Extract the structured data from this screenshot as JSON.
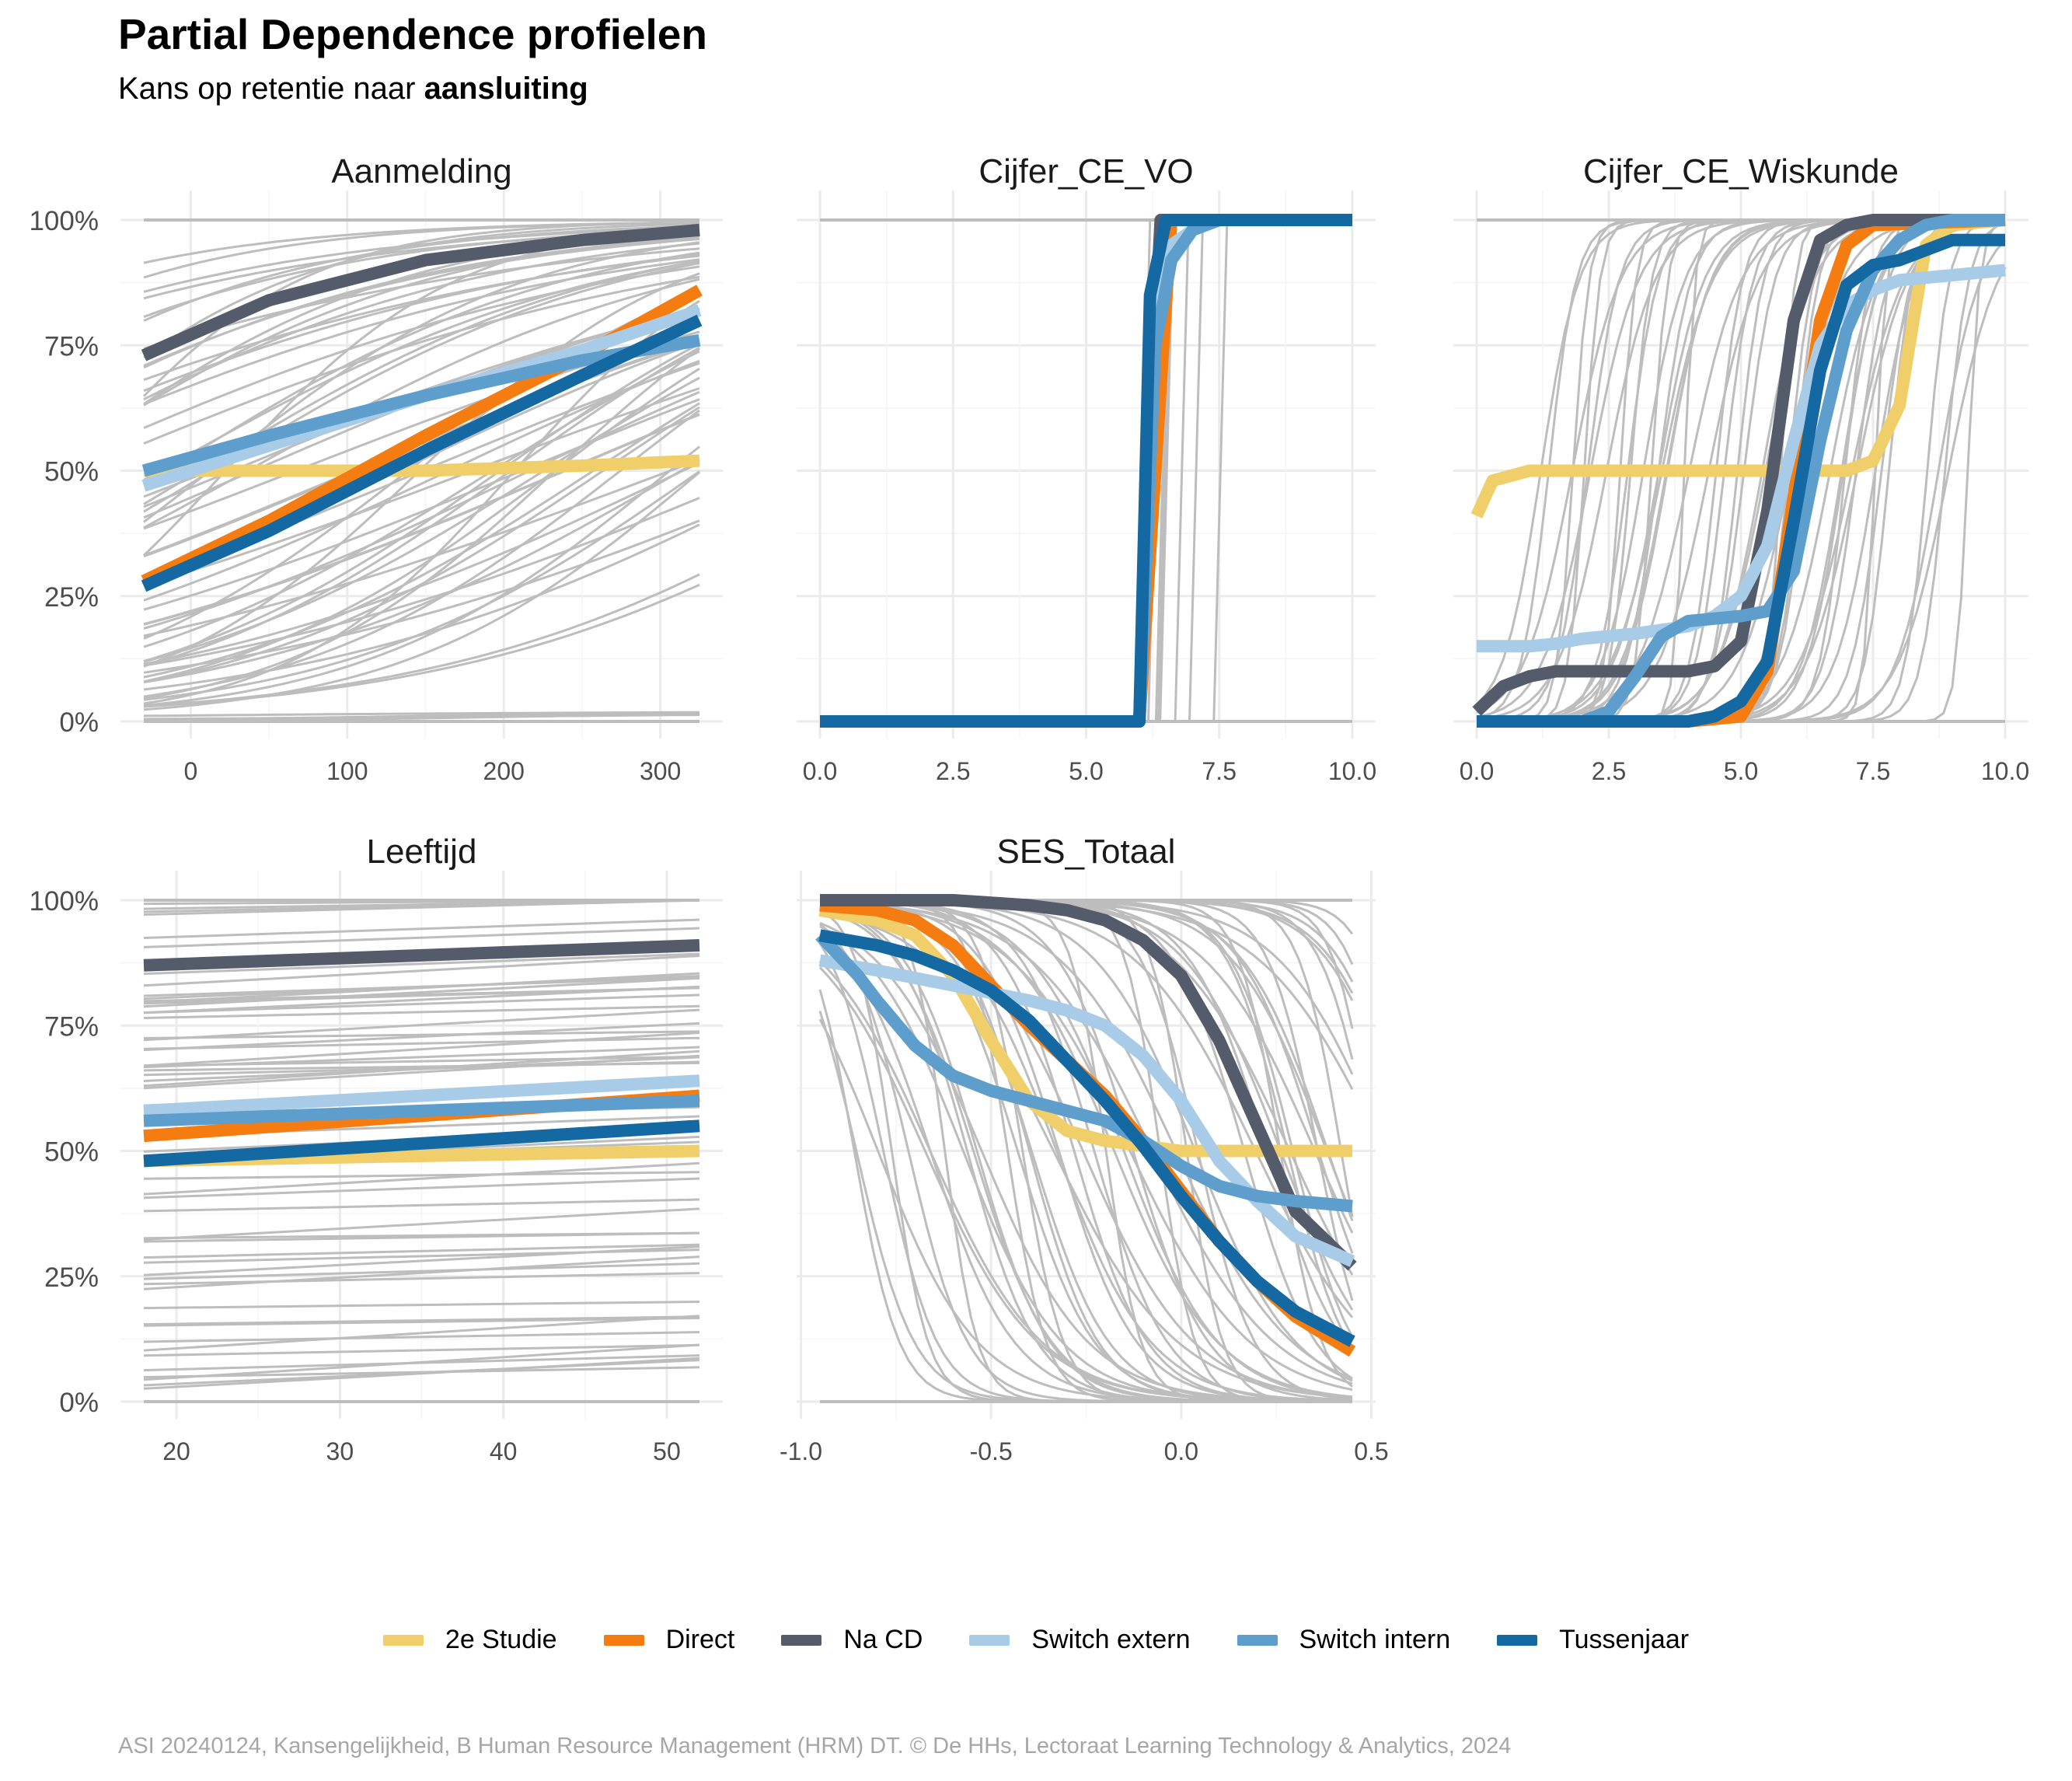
{
  "title": "Partial Dependence profielen",
  "subtitle_prefix": "Kans op retentie naar ",
  "subtitle_bold": "aansluiting",
  "caption": "ASI 20240124, Kansengelijkheid, B Human Resource Management (HRM) DT. © De HHs, Lectoraat Learning Technology & Analytics, 2024",
  "legend": [
    {
      "name": "2e Studie",
      "color": "#f0cf6a"
    },
    {
      "name": "Direct",
      "color": "#f47c11"
    },
    {
      "name": "Na CD",
      "color": "#545c6c"
    },
    {
      "name": "Switch extern",
      "color": "#a8cce8"
    },
    {
      "name": "Switch intern",
      "color": "#5e9ecc"
    },
    {
      "name": "Tussenjaar",
      "color": "#1569a3"
    }
  ],
  "chart_data": [
    {
      "type": "line",
      "title": "Aanmelding",
      "xlim": [
        -30,
        325
      ],
      "ylim": [
        0,
        1
      ],
      "xticks": [
        0,
        100,
        200,
        300
      ],
      "xtick_labels": [
        "0",
        "100",
        "200",
        "300"
      ],
      "yticks": [
        0,
        0.25,
        0.5,
        0.75,
        1
      ],
      "ytick_labels": [
        "0%",
        "25%",
        "50%",
        "75%",
        "100%"
      ],
      "background": {
        "kind": "logistic",
        "x0": -30,
        "x1": 325,
        "count": 70,
        "color": "#bdbdbd"
      },
      "series": [
        {
          "name": "2e Studie",
          "x": [
            -30,
            50,
            150,
            250,
            325
          ],
          "values": [
            0.5,
            0.5,
            0.5,
            0.51,
            0.52
          ]
        },
        {
          "name": "Direct",
          "x": [
            -30,
            50,
            150,
            250,
            325
          ],
          "values": [
            0.28,
            0.4,
            0.57,
            0.73,
            0.86
          ]
        },
        {
          "name": "Na CD",
          "x": [
            -30,
            50,
            150,
            250,
            325
          ],
          "values": [
            0.73,
            0.84,
            0.92,
            0.96,
            0.98
          ]
        },
        {
          "name": "Switch extern",
          "x": [
            -30,
            50,
            150,
            250,
            325
          ],
          "values": [
            0.47,
            0.55,
            0.65,
            0.74,
            0.82
          ]
        },
        {
          "name": "Switch intern",
          "x": [
            -30,
            50,
            150,
            250,
            325
          ],
          "values": [
            0.5,
            0.57,
            0.65,
            0.72,
            0.76
          ]
        },
        {
          "name": "Tussenjaar",
          "x": [
            -30,
            50,
            150,
            250,
            325
          ],
          "values": [
            0.27,
            0.38,
            0.54,
            0.69,
            0.8
          ]
        }
      ]
    },
    {
      "type": "line",
      "title": "Cijfer_CE_VO",
      "xlim": [
        0,
        10
      ],
      "ylim": [
        0,
        1
      ],
      "xticks": [
        0,
        2.5,
        5,
        7.5,
        10
      ],
      "xtick_labels": [
        "0.0",
        "2.5",
        "5.0",
        "7.5",
        "10.0"
      ],
      "yticks": [
        0,
        0.25,
        0.5,
        0.75,
        1
      ],
      "ytick_labels": [
        "0%",
        "25%",
        "50%",
        "75%",
        "100%"
      ],
      "background": {
        "kind": "step",
        "x0": 0,
        "x1": 10,
        "count": 8,
        "color": "#bdbdbd"
      },
      "series": [
        {
          "name": "2e Studie",
          "x": [
            0,
            6.0,
            6.3,
            6.6,
            10
          ],
          "values": [
            0,
            0,
            0.5,
            1.0,
            1.0
          ]
        },
        {
          "name": "Direct",
          "x": [
            0,
            6.0,
            6.3,
            6.6,
            10
          ],
          "values": [
            0,
            0,
            0.5,
            1.0,
            1.0
          ]
        },
        {
          "name": "Na CD",
          "x": [
            0,
            6.0,
            6.15,
            6.4,
            7,
            10
          ],
          "values": [
            0,
            0,
            0.5,
            1.0,
            1.0,
            1.0
          ]
        },
        {
          "name": "Switch extern",
          "x": [
            0,
            6.0,
            6.3,
            6.6,
            7.0,
            7.5,
            10
          ],
          "values": [
            0,
            0,
            0.8,
            0.95,
            0.98,
            1.0,
            1.0
          ]
        },
        {
          "name": "Switch intern",
          "x": [
            0,
            6.0,
            6.3,
            6.6,
            7.0,
            7.5,
            10
          ],
          "values": [
            0,
            0,
            0.75,
            0.92,
            0.98,
            1.0,
            1.0
          ]
        },
        {
          "name": "Tussenjaar",
          "x": [
            0,
            6.0,
            6.2,
            6.5,
            10
          ],
          "values": [
            0,
            0,
            0.85,
            1.0,
            1.0
          ]
        }
      ]
    },
    {
      "type": "line",
      "title": "Cijfer_CE_Wiskunde",
      "xlim": [
        0,
        10
      ],
      "ylim": [
        0,
        1
      ],
      "xticks": [
        0,
        2.5,
        5,
        7.5,
        10
      ],
      "xtick_labels": [
        "0.0",
        "2.5",
        "5.0",
        "7.5",
        "10.0"
      ],
      "yticks": [
        0,
        0.25,
        0.5,
        0.75,
        1
      ],
      "ytick_labels": [
        "0%",
        "25%",
        "50%",
        "75%",
        "100%"
      ],
      "background": {
        "kind": "logistic",
        "x0": 0,
        "x1": 10,
        "count": 50,
        "color": "#bdbdbd"
      },
      "series": [
        {
          "name": "2e Studie",
          "x": [
            0,
            0.3,
            1,
            3,
            5,
            6,
            7,
            7.5,
            8,
            8.5,
            9,
            10
          ],
          "values": [
            0.41,
            0.48,
            0.5,
            0.5,
            0.5,
            0.5,
            0.5,
            0.52,
            0.63,
            0.95,
            0.99,
            1.0
          ]
        },
        {
          "name": "Direct",
          "x": [
            0,
            4,
            5,
            5.5,
            6,
            6.5,
            7,
            7.5,
            10
          ],
          "values": [
            0,
            0,
            0.01,
            0.1,
            0.45,
            0.8,
            0.95,
            0.99,
            1.0
          ]
        },
        {
          "name": "Na CD",
          "x": [
            0,
            0.5,
            1,
            1.5,
            3,
            4,
            4.5,
            5,
            5.5,
            6,
            6.5,
            7,
            7.5,
            10
          ],
          "values": [
            0.02,
            0.07,
            0.09,
            0.1,
            0.1,
            0.1,
            0.11,
            0.16,
            0.42,
            0.8,
            0.96,
            0.99,
            1.0,
            1.0
          ]
        },
        {
          "name": "Switch extern",
          "x": [
            0,
            1,
            1.5,
            2,
            3,
            4,
            4.5,
            5,
            5.5,
            6,
            6.5,
            7,
            7.5,
            8,
            9,
            10
          ],
          "values": [
            0.15,
            0.15,
            0.155,
            0.165,
            0.175,
            0.19,
            0.21,
            0.25,
            0.35,
            0.56,
            0.75,
            0.83,
            0.86,
            0.88,
            0.89,
            0.9
          ]
        },
        {
          "name": "Switch intern",
          "x": [
            0,
            2,
            2.5,
            3,
            3.5,
            4,
            5,
            5.5,
            6,
            6.5,
            7,
            7.5,
            8,
            8.5,
            9,
            10
          ],
          "values": [
            0,
            0,
            0.02,
            0.09,
            0.17,
            0.2,
            0.21,
            0.22,
            0.3,
            0.56,
            0.78,
            0.9,
            0.96,
            0.99,
            1.0,
            1.0
          ]
        },
        {
          "name": "Tussenjaar",
          "x": [
            0,
            4,
            4.5,
            5,
            5.5,
            6,
            6.5,
            7,
            7.5,
            8,
            8.5,
            9,
            10
          ],
          "values": [
            0,
            0,
            0.01,
            0.04,
            0.12,
            0.4,
            0.7,
            0.87,
            0.91,
            0.92,
            0.94,
            0.96,
            0.96
          ]
        }
      ]
    },
    {
      "type": "line",
      "title": "Leeftijd",
      "xlim": [
        18,
        52
      ],
      "ylim": [
        0,
        1
      ],
      "xticks": [
        20,
        30,
        40,
        50
      ],
      "xtick_labels": [
        "20",
        "30",
        "40",
        "50"
      ],
      "yticks": [
        0,
        0.25,
        0.5,
        0.75,
        1
      ],
      "ytick_labels": [
        "0%",
        "25%",
        "50%",
        "75%",
        "100%"
      ],
      "background": {
        "kind": "linear",
        "x0": 18,
        "x1": 52,
        "count": 60,
        "color": "#bdbdbd"
      },
      "series": [
        {
          "name": "2e Studie",
          "x": [
            18,
            52
          ],
          "values": [
            0.48,
            0.5
          ]
        },
        {
          "name": "Direct",
          "x": [
            18,
            52
          ],
          "values": [
            0.53,
            0.61
          ]
        },
        {
          "name": "Na CD",
          "x": [
            18,
            52
          ],
          "values": [
            0.87,
            0.91
          ]
        },
        {
          "name": "Switch extern",
          "x": [
            18,
            52
          ],
          "values": [
            0.58,
            0.64
          ]
        },
        {
          "name": "Switch intern",
          "x": [
            18,
            52
          ],
          "values": [
            0.56,
            0.6
          ]
        },
        {
          "name": "Tussenjaar",
          "x": [
            18,
            52
          ],
          "values": [
            0.48,
            0.55
          ]
        }
      ]
    },
    {
      "type": "line",
      "title": "SES_Totaal",
      "xlim": [
        -0.95,
        0.45
      ],
      "ylim": [
        0,
        1
      ],
      "xticks": [
        -1.0,
        -0.5,
        0.0,
        0.5
      ],
      "xtick_labels": [
        "-1.0",
        "-0.5",
        "0.0",
        "0.5"
      ],
      "yticks": [
        0,
        0.25,
        0.5,
        0.75,
        1
      ],
      "ytick_labels": [
        "0%",
        "25%",
        "50%",
        "75%",
        "100%"
      ],
      "background": {
        "kind": "reverse-logistic",
        "x0": -0.95,
        "x1": 0.45,
        "count": 60,
        "color": "#bdbdbd"
      },
      "series": [
        {
          "name": "2e Studie",
          "x": [
            -0.95,
            -0.8,
            -0.7,
            -0.6,
            -0.5,
            -0.4,
            -0.3,
            -0.2,
            -0.1,
            0.0,
            0.1,
            0.2,
            0.45
          ],
          "values": [
            0.98,
            0.96,
            0.93,
            0.85,
            0.72,
            0.6,
            0.54,
            0.52,
            0.51,
            0.5,
            0.5,
            0.5,
            0.5
          ]
        },
        {
          "name": "Direct",
          "x": [
            -0.95,
            -0.8,
            -0.7,
            -0.6,
            -0.5,
            -0.4,
            -0.3,
            -0.2,
            -0.1,
            0.0,
            0.1,
            0.2,
            0.3,
            0.45
          ],
          "values": [
            0.99,
            0.98,
            0.96,
            0.91,
            0.83,
            0.75,
            0.68,
            0.61,
            0.52,
            0.42,
            0.32,
            0.24,
            0.17,
            0.1
          ]
        },
        {
          "name": "Na CD",
          "x": [
            -0.95,
            -0.6,
            -0.5,
            -0.4,
            -0.3,
            -0.2,
            -0.1,
            0.0,
            0.1,
            0.2,
            0.3,
            0.45
          ],
          "values": [
            1.0,
            1.0,
            0.995,
            0.99,
            0.98,
            0.96,
            0.92,
            0.85,
            0.72,
            0.55,
            0.38,
            0.27
          ]
        },
        {
          "name": "Switch extern",
          "x": [
            -0.95,
            -0.8,
            -0.6,
            -0.4,
            -0.3,
            -0.2,
            -0.1,
            0.0,
            0.1,
            0.2,
            0.3,
            0.45
          ],
          "values": [
            0.88,
            0.86,
            0.83,
            0.8,
            0.78,
            0.75,
            0.69,
            0.6,
            0.48,
            0.4,
            0.33,
            0.28
          ]
        },
        {
          "name": "Switch intern",
          "x": [
            -0.95,
            -0.85,
            -0.8,
            -0.7,
            -0.6,
            -0.5,
            -0.4,
            -0.3,
            -0.2,
            -0.1,
            0.0,
            0.1,
            0.2,
            0.3,
            0.45
          ],
          "values": [
            0.93,
            0.85,
            0.8,
            0.71,
            0.65,
            0.62,
            0.6,
            0.58,
            0.56,
            0.52,
            0.47,
            0.43,
            0.41,
            0.4,
            0.39
          ]
        },
        {
          "name": "Tussenjaar",
          "x": [
            -0.95,
            -0.8,
            -0.7,
            -0.6,
            -0.5,
            -0.4,
            -0.3,
            -0.2,
            -0.1,
            0.0,
            0.1,
            0.2,
            0.3,
            0.45
          ],
          "values": [
            0.93,
            0.91,
            0.89,
            0.86,
            0.82,
            0.76,
            0.68,
            0.6,
            0.51,
            0.41,
            0.32,
            0.24,
            0.18,
            0.12
          ]
        }
      ]
    }
  ]
}
